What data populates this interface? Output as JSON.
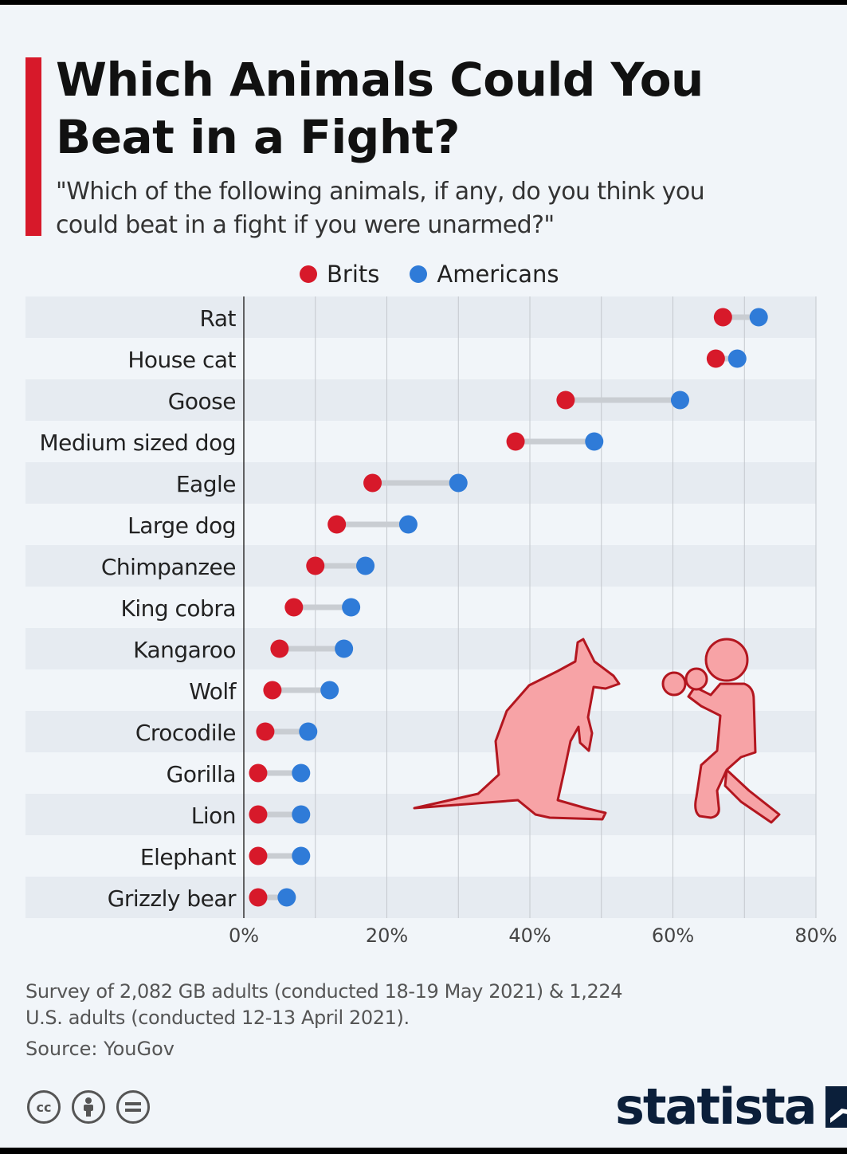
{
  "title": "Which Animals Could You Beat in a Fight?",
  "subtitle": "\"Which of the following animals, if any, do you think you could beat in a fight if you were unarmed?\"",
  "legend": {
    "brits": "Brits",
    "americans": "Americans"
  },
  "colors": {
    "brits": "#d7192a",
    "americans": "#2f7bd8",
    "accent": "#d7192a",
    "connector": "#c9cdd2",
    "band": "#e6ebf1",
    "illustration_fill": "#f7a3a6",
    "illustration_stroke": "#b3161f"
  },
  "chart_data": {
    "type": "dumbbell",
    "categories": [
      "Rat",
      "House cat",
      "Goose",
      "Medium sized dog",
      "Eagle",
      "Large dog",
      "Chimpanzee",
      "King cobra",
      "Kangaroo",
      "Wolf",
      "Crocodile",
      "Gorilla",
      "Lion",
      "Elephant",
      "Grizzly bear"
    ],
    "series": [
      {
        "name": "Brits",
        "values": [
          67,
          66,
          45,
          38,
          18,
          13,
          10,
          7,
          5,
          4,
          3,
          2,
          2,
          2,
          2
        ]
      },
      {
        "name": "Americans",
        "values": [
          72,
          69,
          61,
          49,
          30,
          23,
          17,
          15,
          14,
          12,
          9,
          8,
          8,
          8,
          6
        ]
      }
    ],
    "xlim": [
      0,
      80
    ],
    "xticks": [
      "0%",
      "20%",
      "40%",
      "60%",
      "80%"
    ],
    "grid": "vertical",
    "legend_position": "top-center"
  },
  "illustrations": [
    "kangaroo-illustration",
    "boxer-illustration"
  ],
  "footnote": "Survey of 2,082 GB adults (conducted 18-19 May 2021) & 1,224 U.S. adults (conducted 12-13 April 2021).",
  "source": "Source: YouGov",
  "license_icons": [
    "cc",
    "by",
    "nd"
  ],
  "brand": "statista"
}
